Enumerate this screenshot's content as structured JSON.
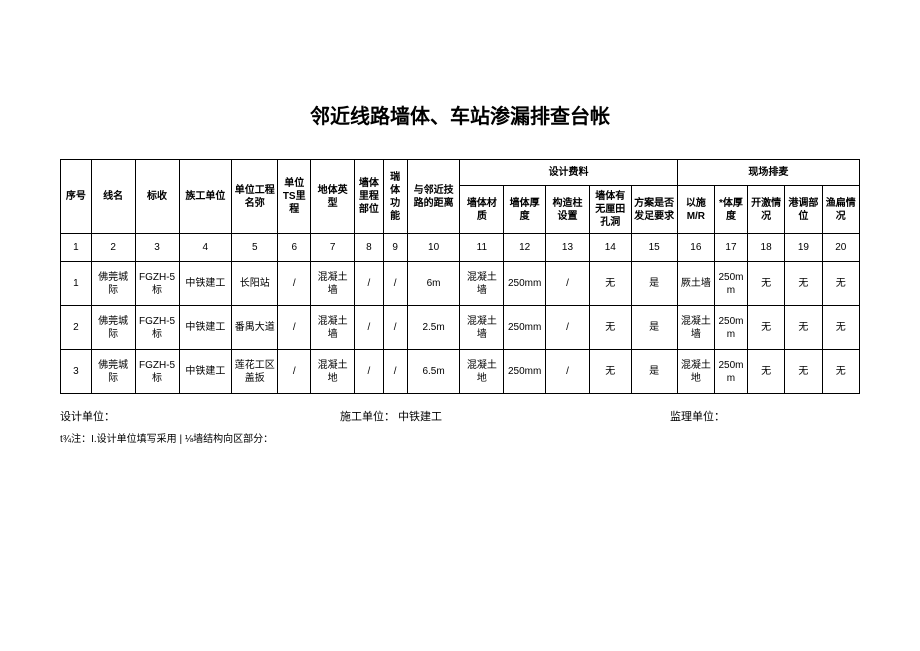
{
  "title": "邻近线路墙体、车站渗漏排查台帐",
  "headers": {
    "c1": "序号",
    "c2": "线名",
    "c3": "标收",
    "c4": "族工单位",
    "c5": "单位工程名弥",
    "c6": "单位TS里程",
    "c7": "地体英型",
    "c8": "墙体里程部位",
    "c9": "瑞体功能",
    "c10": "与邻近技路的距离",
    "group_design": "设计费料",
    "c11": "墙体材质",
    "c12": "墙体厚度",
    "c13": "构造柱设置",
    "c14": "墙体有无厘田孔洞",
    "c15": "方案是否发足要求",
    "group_site": "现场排麦",
    "c16": "以施M/R",
    "c17": "*体厚度",
    "c18": "开激情况",
    "c19": "港调部位",
    "c20": "渔扁情况"
  },
  "num_row": [
    "1",
    "2",
    "3",
    "4",
    "5",
    "6",
    "7",
    "8",
    "9",
    "10",
    "11",
    "12",
    "13",
    "14",
    "15",
    "16",
    "17",
    "18",
    "19",
    "20"
  ],
  "rows": [
    {
      "c1": "1",
      "c2": "佛莞城际",
      "c3": "FGZH-5标",
      "c4": "中铁建工",
      "c5": "长阳站",
      "c6": "/",
      "c7": "混凝土墙",
      "c8": "/",
      "c9": "/",
      "c10": "6m",
      "c11": "混凝土墙",
      "c12": "250mm",
      "c13": "/",
      "c14": "无",
      "c15": "是",
      "c16": "厥土墙",
      "c17": "250mm",
      "c18": "无",
      "c19": "无",
      "c20": "无"
    },
    {
      "c1": "2",
      "c2": "佛莞城际",
      "c3": "FGZH-5标",
      "c4": "中铁建工",
      "c5": "番禺大道",
      "c6": "/",
      "c7": "混凝土墙",
      "c8": "/",
      "c9": "/",
      "c10": "2.5m",
      "c11": "混凝土墙",
      "c12": "250mm",
      "c13": "/",
      "c14": "无",
      "c15": "是",
      "c16": "混凝土墙",
      "c17": "250mm",
      "c18": "无",
      "c19": "无",
      "c20": "无"
    },
    {
      "c1": "3",
      "c2": "佛莞城际",
      "c3": "FGZH-5标",
      "c4": "中铁建工",
      "c5": "莲花工区盖扳",
      "c6": "/",
      "c7": "混凝土地",
      "c8": "/",
      "c9": "/",
      "c10": "6.5m",
      "c11": "混凝土地",
      "c12": "250mm",
      "c13": "/",
      "c14": "无",
      "c15": "是",
      "c16": "混凝土地",
      "c17": "250mm",
      "c18": "无",
      "c19": "无",
      "c20": "无"
    }
  ],
  "footer": {
    "design_unit_label": "设计单位：",
    "construct_unit_label": "施工单位：",
    "construct_unit_value": "中铁建工",
    "supervise_unit_label": "监理单位：",
    "note": "t¾注：I.设计单位填写采用 | ⅛墙结构向区部分："
  },
  "style": {
    "background_color": "#ffffff",
    "text_color": "#000000",
    "border_color": "#000000",
    "title_fontsize": 20,
    "table_fontsize": 10,
    "footer_fontsize": 11
  }
}
